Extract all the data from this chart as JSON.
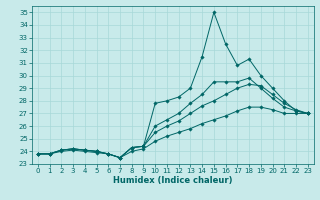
{
  "title": "",
  "xlabel": "Humidex (Indice chaleur)",
  "ylabel": "",
  "background_color": "#c8eaea",
  "grid_color": "#a8d8d8",
  "line_color": "#006666",
  "xlim": [
    -0.5,
    23.5
  ],
  "ylim": [
    23,
    35.5
  ],
  "yticks": [
    23,
    24,
    25,
    26,
    27,
    28,
    29,
    30,
    31,
    32,
    33,
    34,
    35
  ],
  "xticks": [
    0,
    1,
    2,
    3,
    4,
    5,
    6,
    7,
    8,
    9,
    10,
    11,
    12,
    13,
    14,
    15,
    16,
    17,
    18,
    19,
    20,
    21,
    22,
    23
  ],
  "lines": [
    {
      "x": [
        0,
        1,
        2,
        3,
        4,
        5,
        6,
        7,
        8,
        9,
        10,
        11,
        12,
        13,
        14,
        15,
        16,
        17,
        18,
        19,
        20,
        21,
        22,
        23
      ],
      "y": [
        23.8,
        23.8,
        24.1,
        24.2,
        24.1,
        24.0,
        23.8,
        23.5,
        24.3,
        24.4,
        27.8,
        28.0,
        28.3,
        29.0,
        31.5,
        35.0,
        32.5,
        30.8,
        31.3,
        30.0,
        29.0,
        28.0,
        27.2,
        27.0
      ]
    },
    {
      "x": [
        0,
        1,
        2,
        3,
        4,
        5,
        6,
        7,
        8,
        9,
        10,
        11,
        12,
        13,
        14,
        15,
        16,
        17,
        18,
        19,
        20,
        21,
        22,
        23
      ],
      "y": [
        23.8,
        23.8,
        24.1,
        24.2,
        24.1,
        24.0,
        23.8,
        23.5,
        24.3,
        24.4,
        26.0,
        26.5,
        27.0,
        27.8,
        28.5,
        29.5,
        29.5,
        29.5,
        29.8,
        29.0,
        28.2,
        27.5,
        27.2,
        27.0
      ]
    },
    {
      "x": [
        0,
        1,
        2,
        3,
        4,
        5,
        6,
        7,
        8,
        9,
        10,
        11,
        12,
        13,
        14,
        15,
        16,
        17,
        18,
        19,
        20,
        21,
        22,
        23
      ],
      "y": [
        23.8,
        23.8,
        24.1,
        24.2,
        24.1,
        24.0,
        23.8,
        23.5,
        24.3,
        24.4,
        25.5,
        26.0,
        26.4,
        27.0,
        27.6,
        28.0,
        28.5,
        29.0,
        29.3,
        29.2,
        28.5,
        27.8,
        27.3,
        27.0
      ]
    },
    {
      "x": [
        0,
        1,
        2,
        3,
        4,
        5,
        6,
        7,
        8,
        9,
        10,
        11,
        12,
        13,
        14,
        15,
        16,
        17,
        18,
        19,
        20,
        21,
        22,
        23
      ],
      "y": [
        23.8,
        23.8,
        24.0,
        24.1,
        24.0,
        23.9,
        23.8,
        23.5,
        24.0,
        24.2,
        24.8,
        25.2,
        25.5,
        25.8,
        26.2,
        26.5,
        26.8,
        27.2,
        27.5,
        27.5,
        27.3,
        27.0,
        27.0,
        27.0
      ]
    }
  ],
  "tick_fontsize": 5,
  "xlabel_fontsize": 6,
  "marker_size": 1.8,
  "line_width": 0.7
}
